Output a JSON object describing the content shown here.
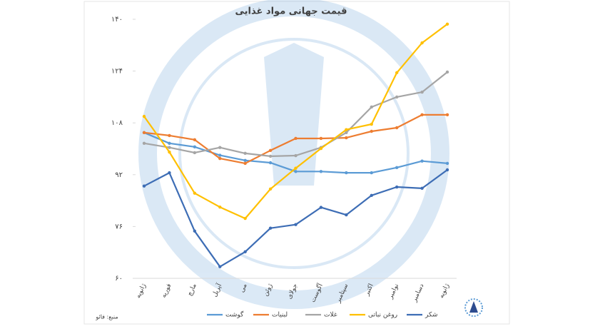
{
  "chart_data": {
    "type": "line",
    "title": "قیمت جهانی مواد غذایی",
    "source": "منبع: فائو",
    "categories": [
      "ژانویه",
      "فوریه",
      "مارچ",
      "آپریل",
      "می",
      "ژوئن",
      "جولای",
      "آگوست",
      "سپتامبر",
      "اکتبر",
      "نوامبر",
      "دسامبر",
      "ژانویه"
    ],
    "series": [
      {
        "name": "گوشت",
        "color": "#5b9bd5",
        "values": [
          105,
          101.7,
          100.6,
          98,
          96.4,
          95.7,
          93,
          93,
          92.6,
          92.6,
          94.2,
          96.2,
          95.5
        ]
      },
      {
        "name": "لبنیات",
        "color": "#ed7d31",
        "values": [
          105,
          104.1,
          102.8,
          97,
          95.5,
          99.5,
          103.2,
          103.2,
          103.4,
          105.4,
          106.5,
          110.5,
          110.5
        ]
      },
      {
        "name": "غلات",
        "color": "#a5a5a5",
        "values": [
          101.7,
          100.4,
          98.8,
          100.4,
          98.6,
          97.7,
          97.9,
          100.4,
          105,
          112.9,
          116,
          117.5,
          123.7
        ]
      },
      {
        "name": "روغن نباتی",
        "color": "#ffc000",
        "values": [
          110,
          99,
          86.3,
          82,
          78.5,
          87.6,
          94,
          100.1,
          105.9,
          107.6,
          123.5,
          132.7,
          138.5
        ]
      },
      {
        "name": "شکر",
        "color": "#3d6db5",
        "values": [
          88.5,
          92.6,
          74.6,
          63.6,
          68.2,
          75.5,
          76.6,
          81.9,
          79.6,
          85.6,
          88.2,
          87.8,
          93.5
        ]
      }
    ],
    "ylim": [
      60,
      140
    ],
    "yticks": [
      {
        "value": 60,
        "label": "۶۰"
      },
      {
        "value": 76,
        "label": "۷۶"
      },
      {
        "value": 92,
        "label": "۹۲"
      },
      {
        "value": 108,
        "label": "۱۰۸"
      },
      {
        "value": 124,
        "label": "۱۲۴"
      },
      {
        "value": 140,
        "label": "۱۴۰"
      }
    ],
    "grid": false,
    "legend": "bottom"
  }
}
